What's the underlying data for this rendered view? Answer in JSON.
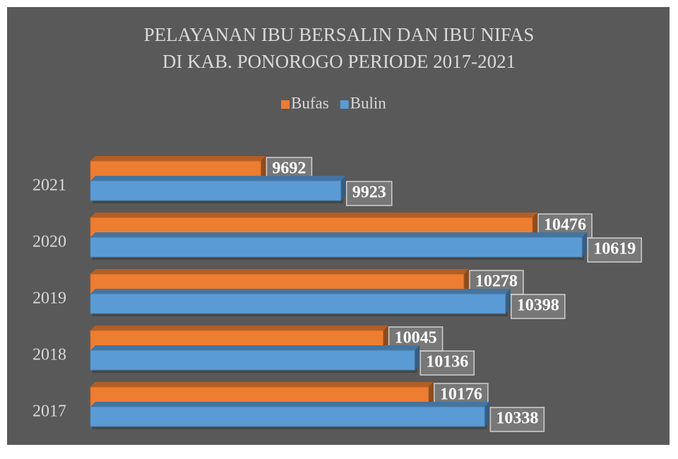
{
  "chart_data": {
    "type": "bar",
    "orientation": "horizontal",
    "title": [
      "PELAYANAN IBU BERSALIN DAN IBU NIFAS",
      "DI KAB. PONOROGO PERIODE 2017-2021"
    ],
    "categories": [
      "2017",
      "2018",
      "2019",
      "2020",
      "2021"
    ],
    "series": [
      {
        "name": "Bufas",
        "color": "#ed7d31",
        "values": [
          10176,
          10045,
          10278,
          10476,
          9692
        ]
      },
      {
        "name": "Bulin",
        "color": "#5b9bd5",
        "values": [
          10338,
          10136,
          10398,
          10619,
          9923
        ]
      }
    ],
    "xlim": [
      9200,
      10800
    ],
    "legend": "top"
  }
}
